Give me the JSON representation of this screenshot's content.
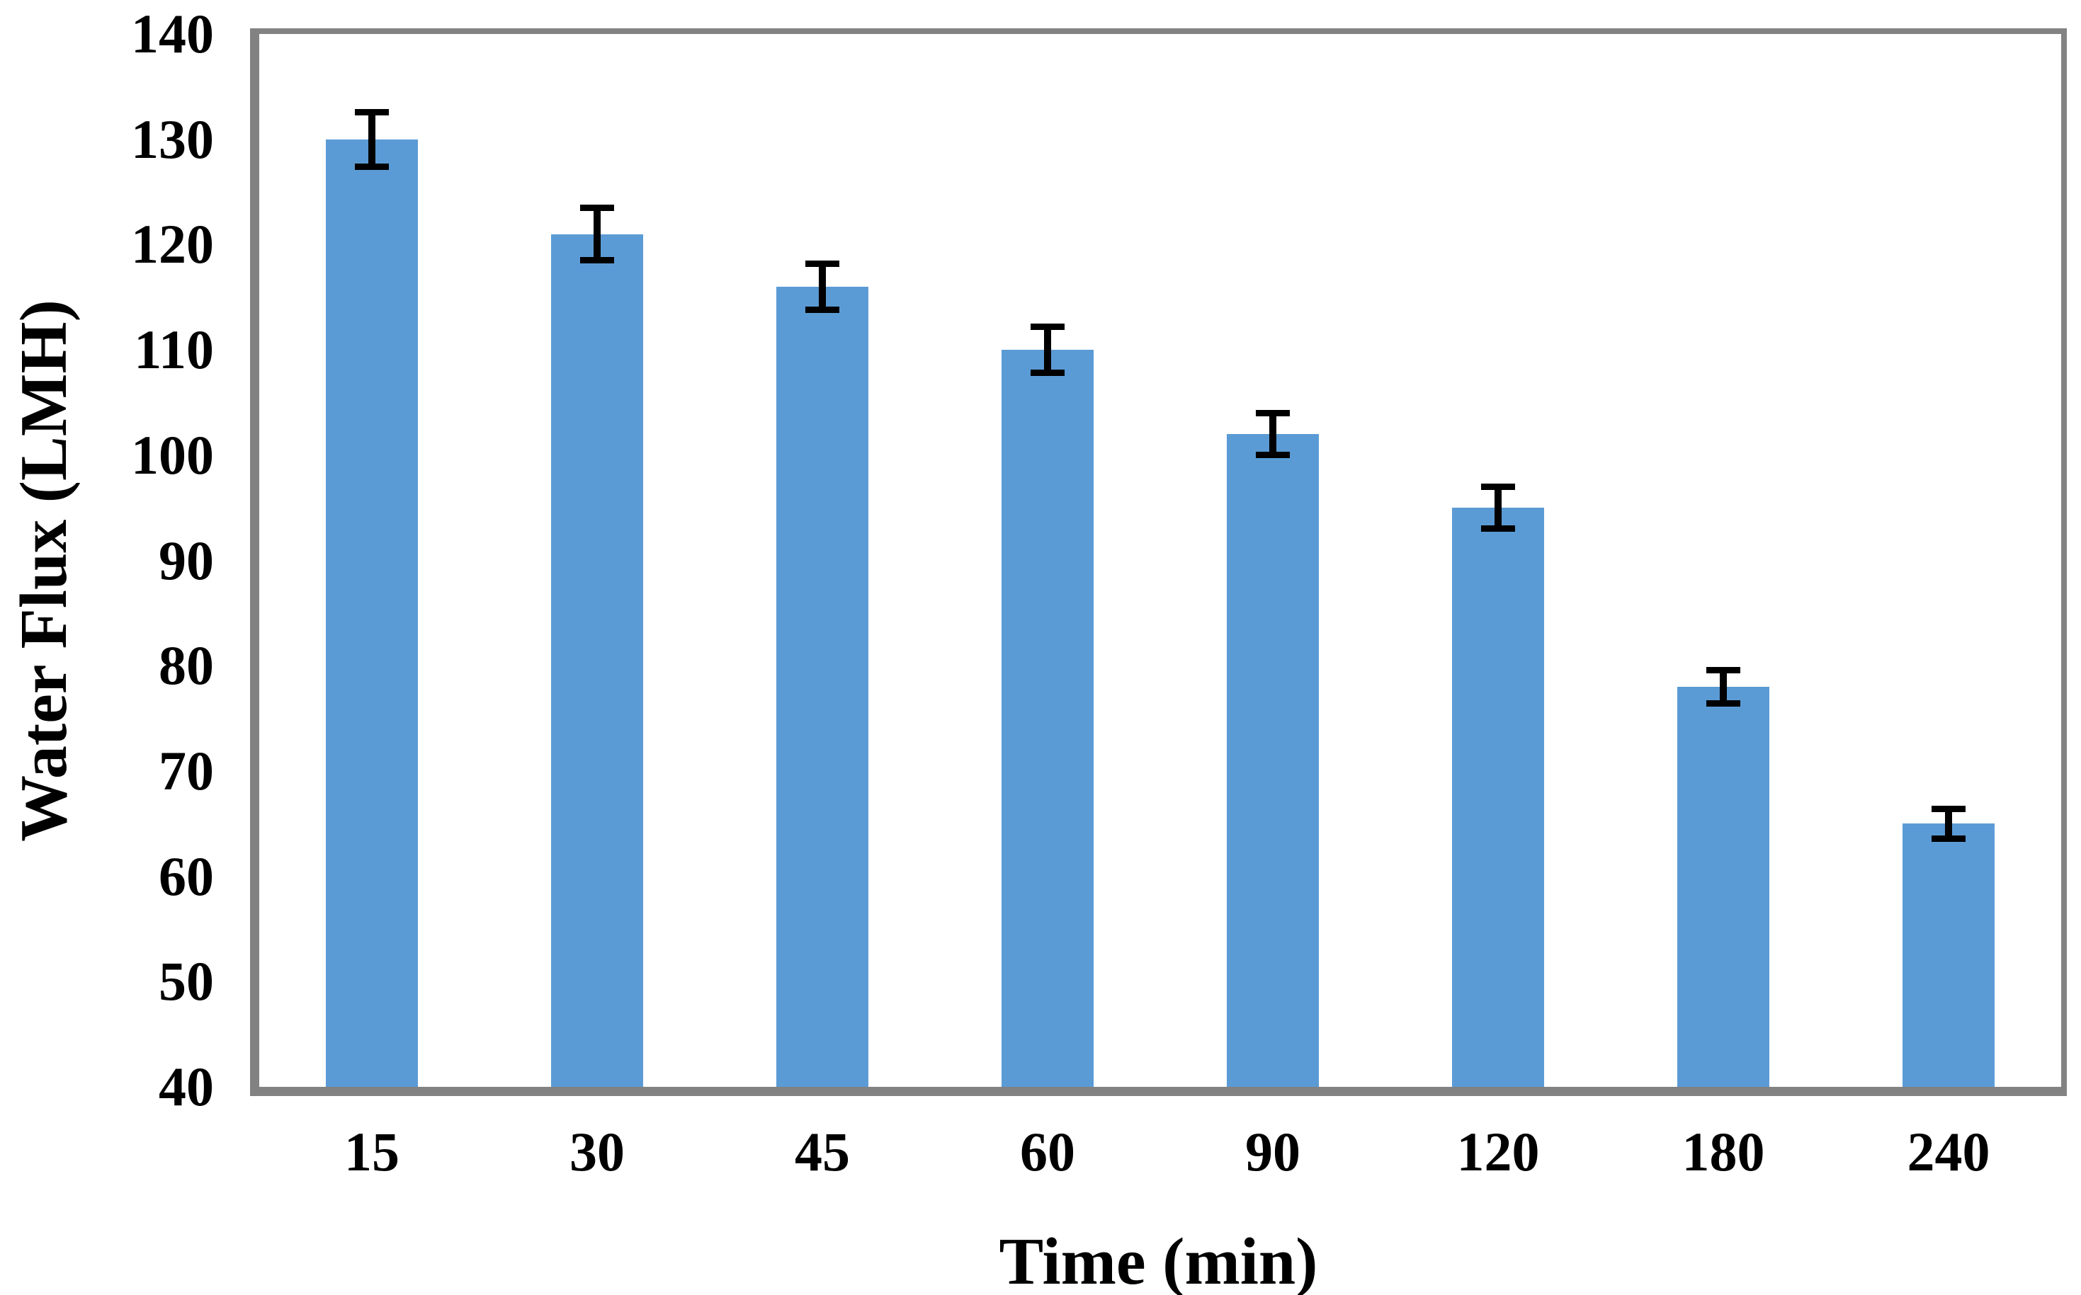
{
  "chart_data": {
    "type": "bar",
    "title": "",
    "xlabel": "Time (min)",
    "ylabel": "Water Flux (LMH)",
    "categories": [
      "15",
      "30",
      "45",
      "60",
      "90",
      "120",
      "180",
      "240"
    ],
    "values": [
      130,
      121,
      116,
      110,
      102,
      95,
      78,
      65
    ],
    "error_bars": [
      2.6,
      2.5,
      2.2,
      2.2,
      2.0,
      2.0,
      1.6,
      1.4
    ],
    "ylim": [
      40,
      140
    ],
    "yticks": [
      140,
      130,
      120,
      110,
      100,
      90,
      80,
      70,
      60,
      50,
      40
    ],
    "grid": "off",
    "legend": "none",
    "bar_color": "#5B9BD5",
    "axis_color": "#828282",
    "error_bar_color": "#000000",
    "text_color": "#000000"
  }
}
